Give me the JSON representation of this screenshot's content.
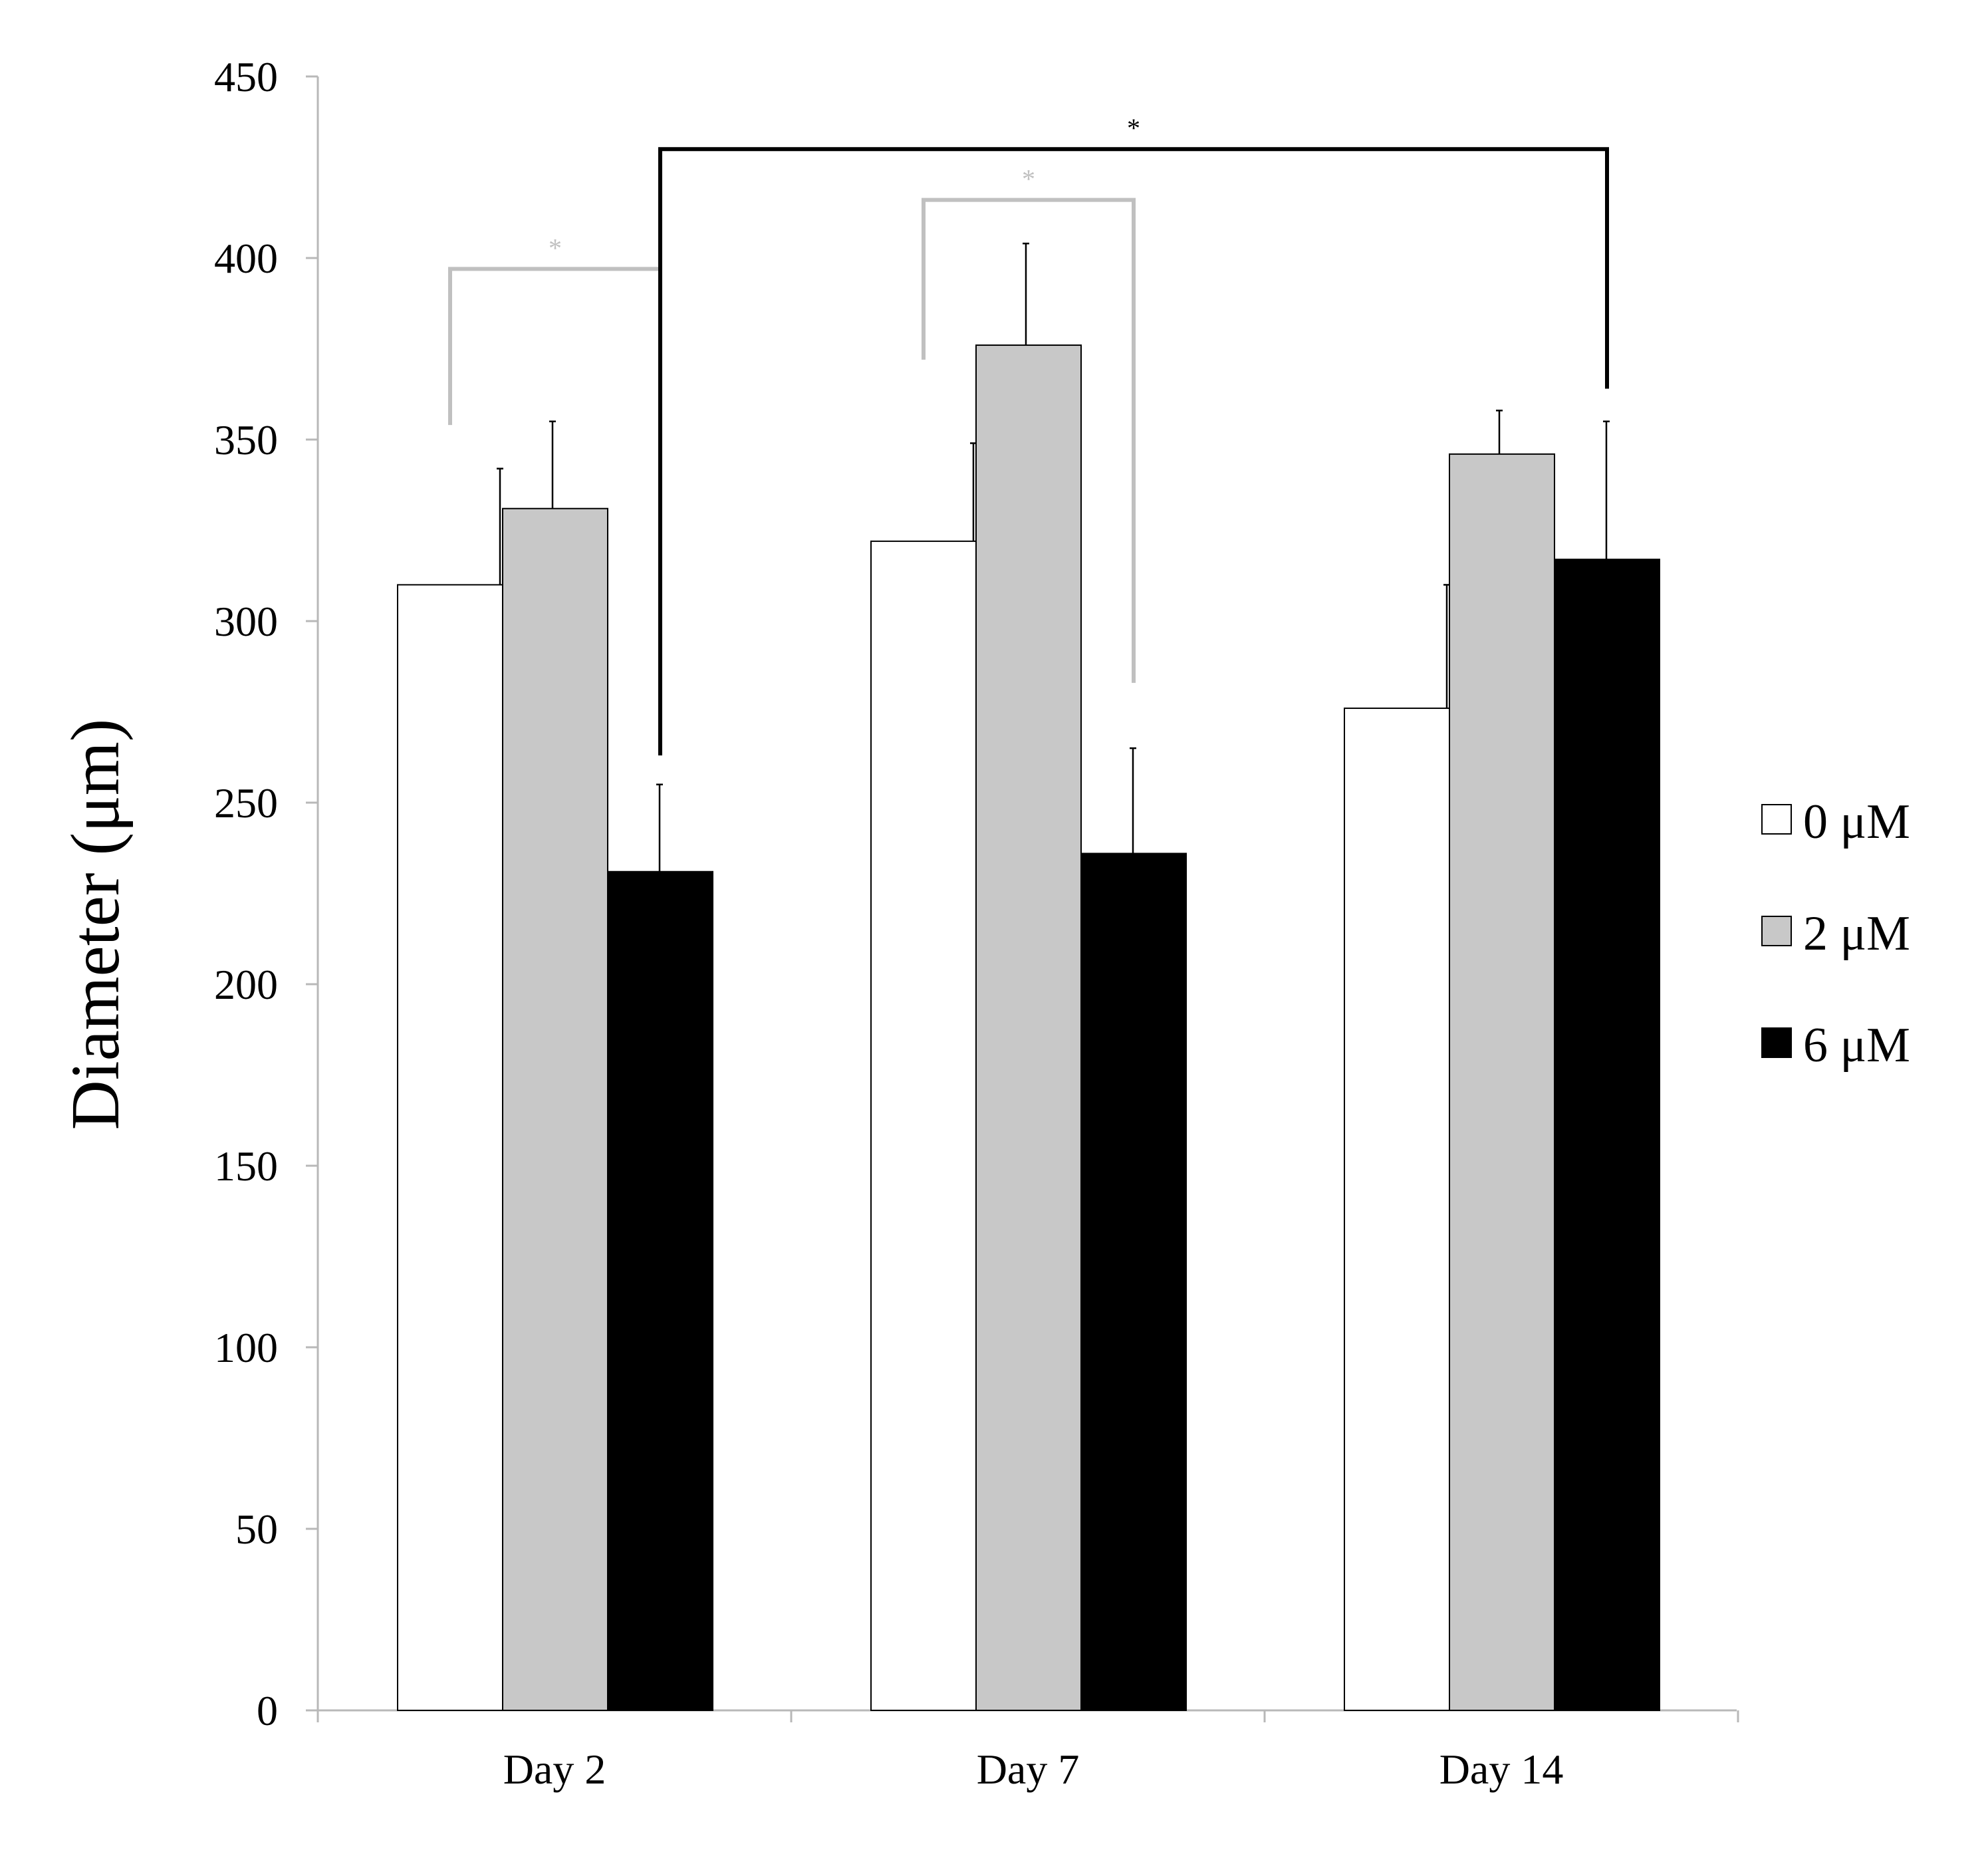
{
  "chart_data": {
    "type": "bar",
    "title": "",
    "xlabel": "",
    "ylabel": "Diameter (μm)",
    "ylim": [
      0,
      450
    ],
    "yticks": [
      0,
      50,
      100,
      150,
      200,
      250,
      300,
      350,
      400,
      450
    ],
    "categories": [
      "Day 2",
      "Day 7",
      "Day 14"
    ],
    "series": [
      {
        "name": "0 μM",
        "color": "#ffffff",
        "values": [
          310,
          322,
          276
        ],
        "errors": [
          32,
          27,
          34
        ]
      },
      {
        "name": "2 μM",
        "color": "#c8c8c8",
        "values": [
          331,
          376,
          346
        ],
        "errors": [
          24,
          28,
          12
        ]
      },
      {
        "name": "6 μM",
        "color": "#000000",
        "values": [
          231,
          236,
          317
        ],
        "errors": [
          24,
          29,
          38
        ]
      }
    ],
    "grid": false,
    "legend_position": "right",
    "significance": [
      {
        "label": "*",
        "color": "#c0c0c0",
        "from": {
          "category": 0,
          "series": 0
        },
        "to": {
          "category": 0,
          "series": 2
        },
        "y": 397,
        "left_end": 354,
        "right_end": 263
      },
      {
        "label": "*",
        "color": "#c0c0c0",
        "from": {
          "category": 1,
          "series": 0
        },
        "to": {
          "category": 1,
          "series": 2
        },
        "y": 416,
        "left_end": 372,
        "right_end": 283
      },
      {
        "label": "*",
        "color": "#000000",
        "from": {
          "category": 0,
          "series": 2
        },
        "to": {
          "category": 2,
          "series": 2
        },
        "y": 430,
        "left_end": 263,
        "right_end": 364
      }
    ]
  }
}
